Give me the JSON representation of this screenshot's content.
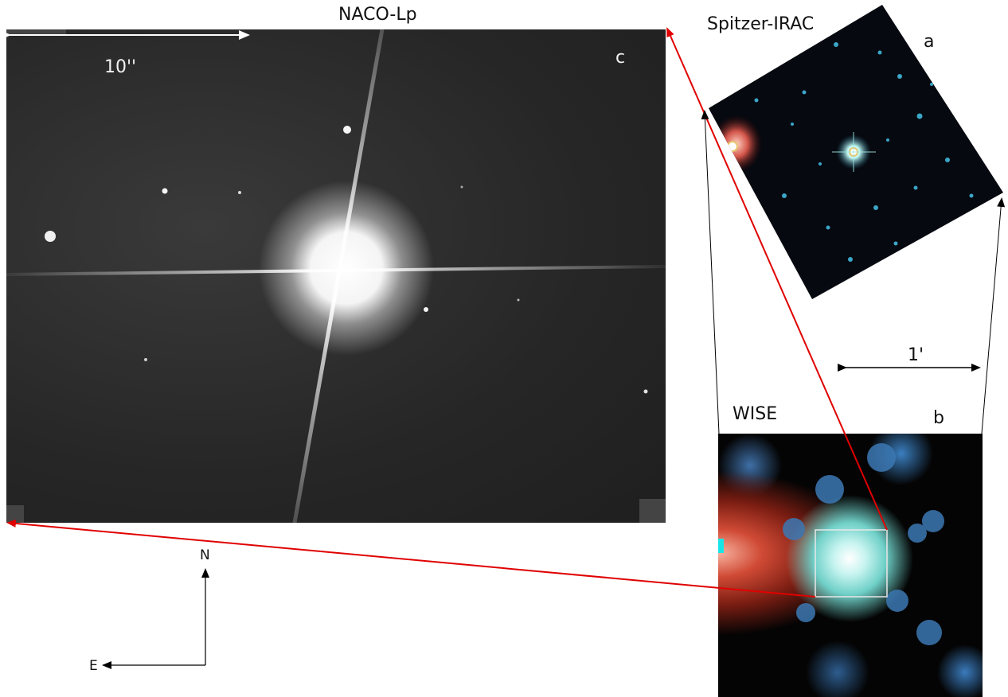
{
  "labels": {
    "naco_title": "NACO-Lp",
    "irac_title": "Spitzer-IRAC",
    "wise_title": "WISE",
    "panel_a": "a",
    "panel_b": "b",
    "panel_c": "c",
    "scale_10arcsec": "10''",
    "scale_1arcmin": "1'",
    "north": "N",
    "east": "E"
  },
  "colors": {
    "connector_red": "#e00000",
    "connector_black": "#000000",
    "scale_arrow_white": "#ffffff"
  }
}
